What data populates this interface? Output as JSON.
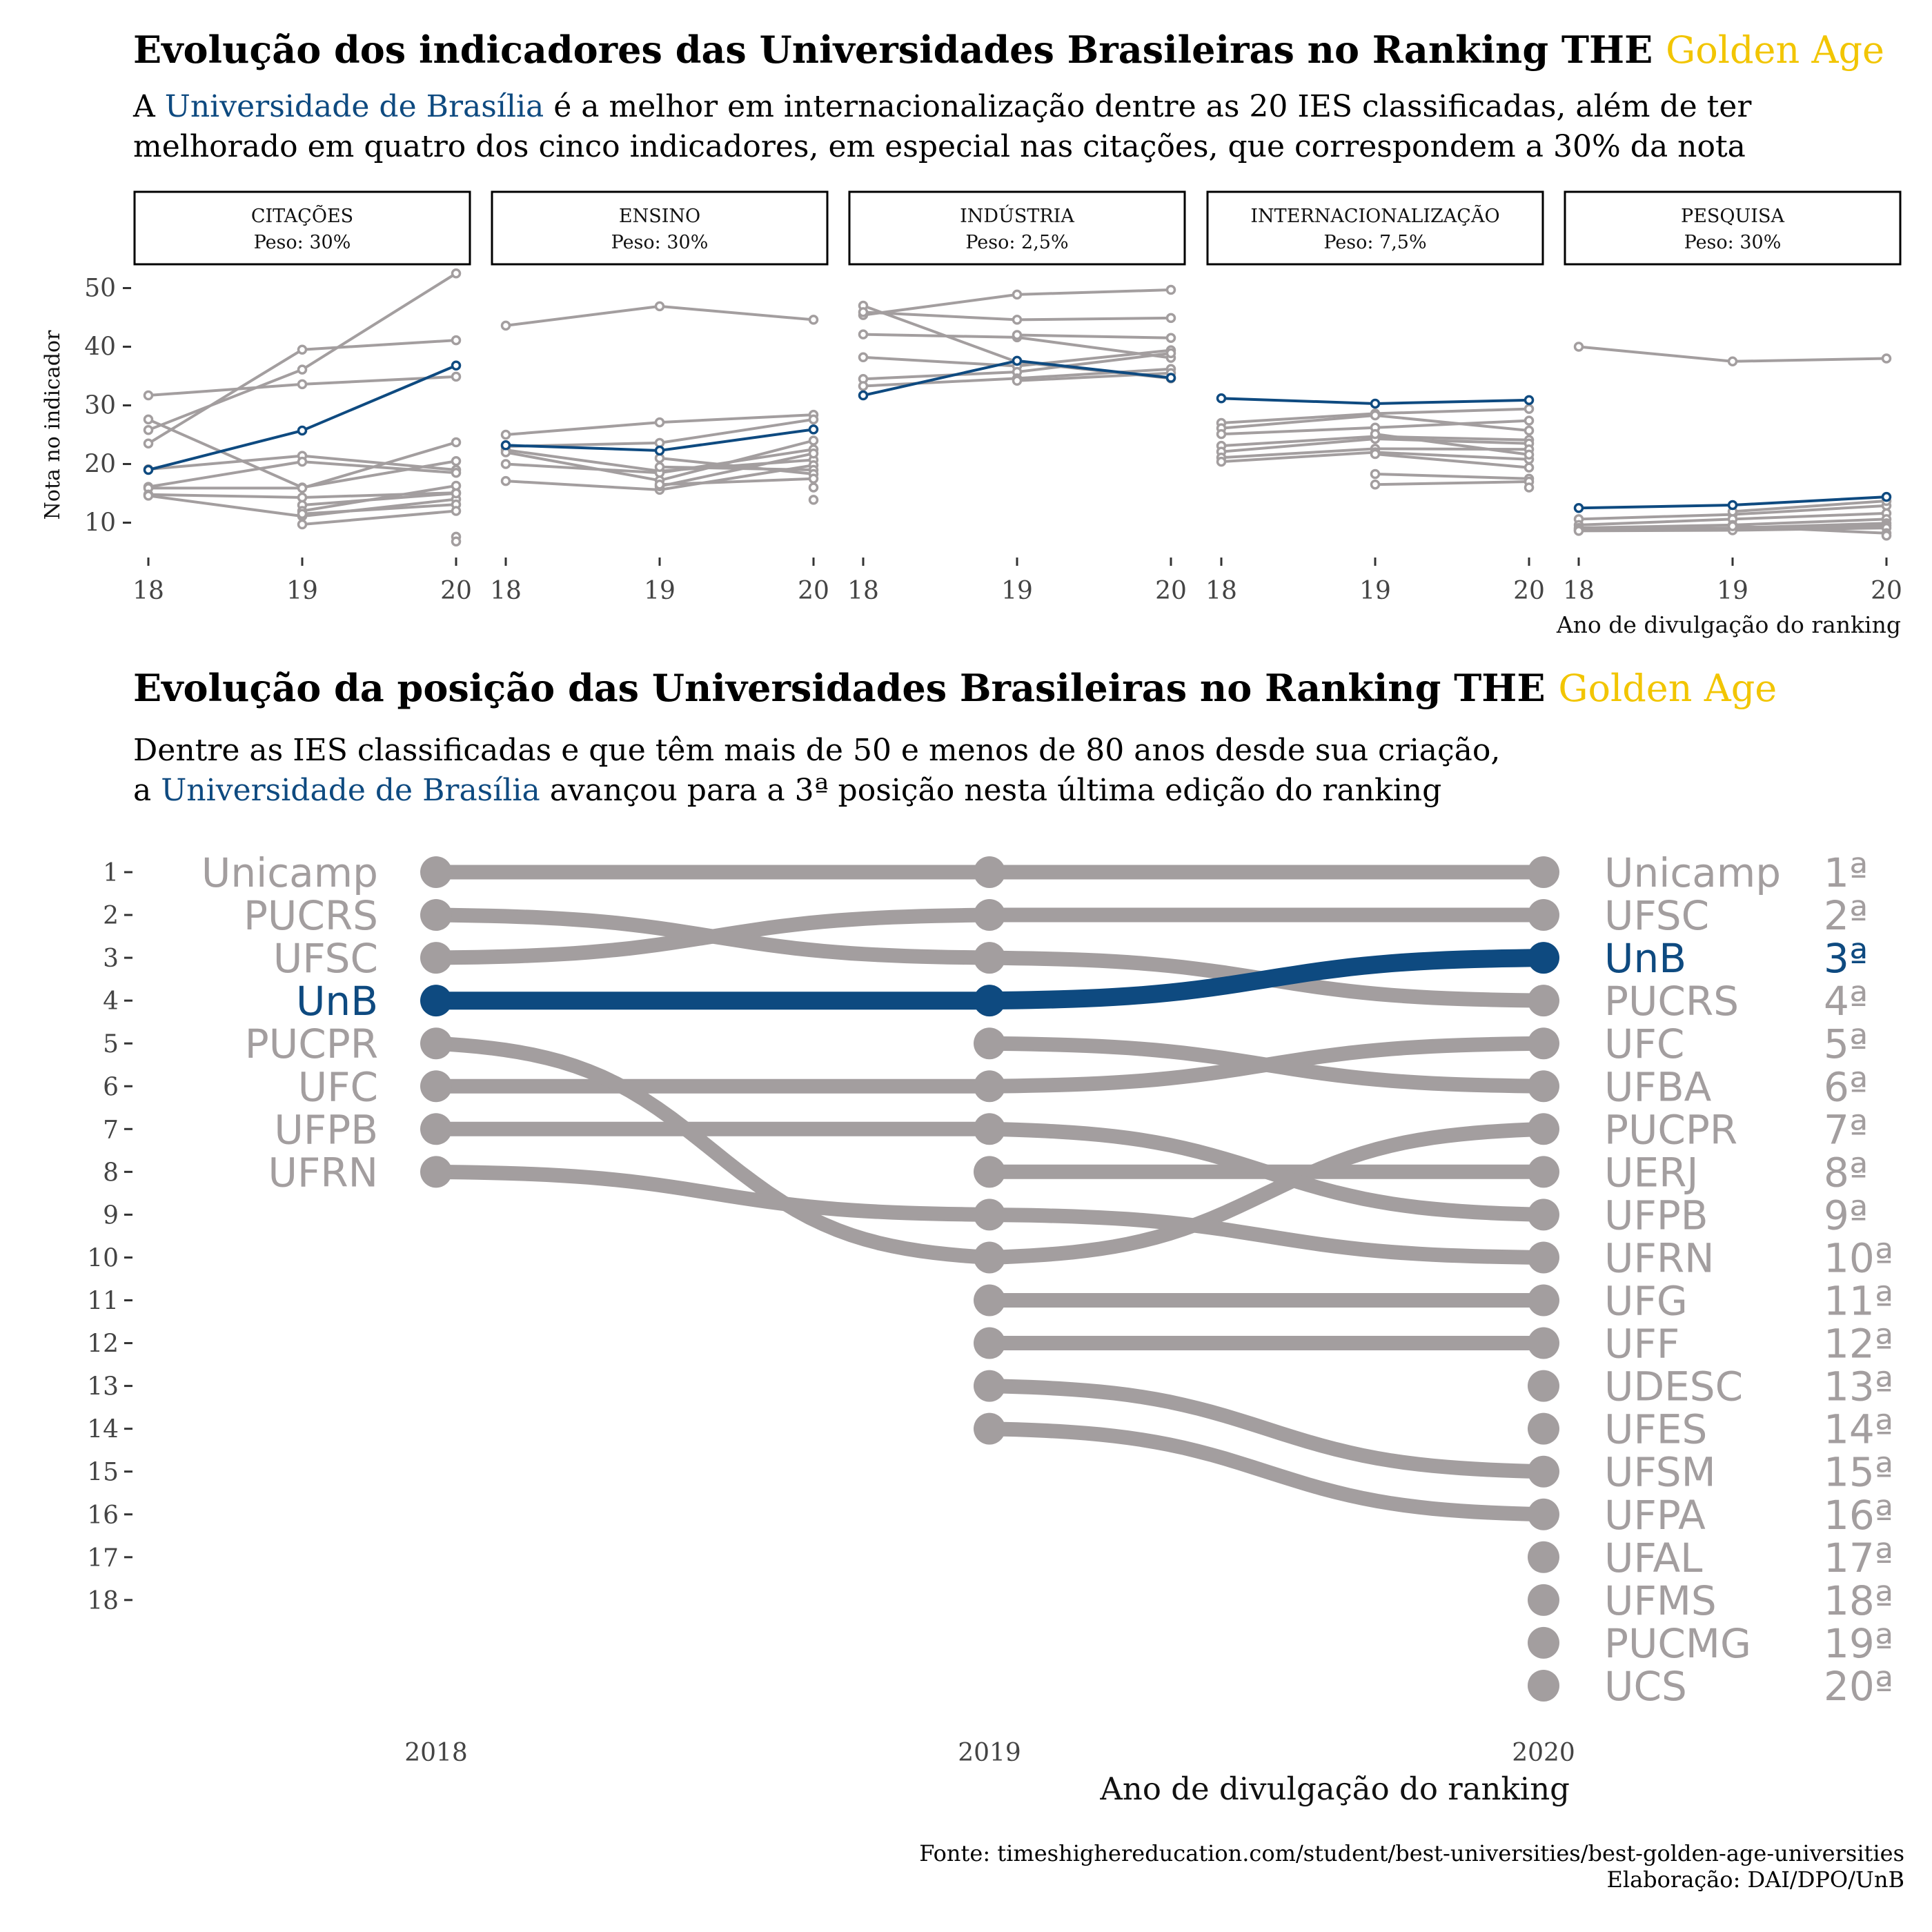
{
  "header1": {
    "title": "Evolução dos indicadores das Universidades Brasileiras no Ranking THE",
    "title_highlight": "Golden Age",
    "subtitle_a": "A ",
    "subtitle_highlight": "Universidade de Brasília",
    "subtitle_b": " é a melhor em internacionalização dentre as 20 IES classificadas, além de ter",
    "subtitle_line2": "melhorado em quatro dos cinco indicadores, em especial nas citações, que correspondem a 30% da nota"
  },
  "header2": {
    "title": "Evolução da posição das Universidades Brasileiras no Ranking THE",
    "title_highlight": "Golden Age",
    "subtitle_line1": "Dentre as IES classificadas e que têm mais de 50 e menos de 80 anos desde sua criação,",
    "subtitle_a": "a ",
    "subtitle_highlight": "Universidade de Brasília",
    "subtitle_b": " avançou para a 3ª posição nesta última edição do ranking"
  },
  "footer": {
    "source": "Fonte: timeshighereducation.com/student/best-universities/best-golden-age-universities",
    "credit": "Elaboração: DAI/DPO/UnB"
  },
  "colors": {
    "gray": "#a39e9f",
    "highlight": "#0e4a80",
    "gold": "#f2c500"
  },
  "chart_data": [
    {
      "type": "line",
      "ylabel": "Nota no indicador",
      "xlabel": "Ano de divulgação do ranking",
      "x": [
        "18",
        "19",
        "20"
      ],
      "yticks": [
        10,
        20,
        30,
        40,
        50
      ],
      "ylim": [
        5,
        53
      ],
      "highlight_series": "UnB",
      "facets": [
        {
          "strip_line1": "CITAÇÕES",
          "strip_line2": "Peso: 30%",
          "series": [
            {
              "values": [
                19.0,
                25.7,
                36.8
              ],
              "highlight": true
            },
            {
              "values": [
                31.7,
                33.6,
                34.9
              ]
            },
            {
              "values": [
                23.5,
                39.5,
                41.1
              ]
            },
            {
              "values": [
                25.8,
                36.1,
                52.5
              ]
            },
            {
              "values": [
                27.6,
                16.0,
                20.5
              ]
            },
            {
              "values": [
                19.1,
                21.4,
                19.0
              ]
            },
            {
              "values": [
                16.1,
                20.4,
                18.5
              ]
            },
            {
              "values": [
                15.9,
                15.9,
                23.7
              ]
            },
            {
              "values": [
                14.8,
                14.3,
                15.1
              ]
            },
            {
              "values": [
                14.6,
                11.1,
                14.0
              ]
            },
            {
              "values": [
                null,
                13.0,
                15.0
              ]
            },
            {
              "values": [
                null,
                12.0,
                16.3
              ]
            },
            {
              "values": [
                null,
                11.5,
                13.1
              ]
            },
            {
              "values": [
                null,
                9.7,
                12.0
              ]
            },
            {
              "values": [
                null,
                null,
                7.6
              ]
            },
            {
              "values": [
                null,
                null,
                6.8
              ]
            }
          ]
        },
        {
          "strip_line1": "ENSINO",
          "strip_line2": "Peso: 30%",
          "series": [
            {
              "values": [
                23.2,
                22.3,
                25.9
              ],
              "highlight": true
            },
            {
              "values": [
                43.6,
                46.9,
                44.6
              ]
            },
            {
              "values": [
                25.0,
                27.1,
                28.4
              ]
            },
            {
              "values": [
                23.0,
                23.6,
                27.6
              ]
            },
            {
              "values": [
                22.4,
                18.8,
                20.7
              ]
            },
            {
              "values": [
                22.0,
                17.2,
                24.0
              ]
            },
            {
              "values": [
                20.0,
                18.5,
                22.5
              ]
            },
            {
              "values": [
                17.1,
                15.6,
                19.8
              ]
            },
            {
              "values": [
                null,
                16.2,
                21.8
              ]
            },
            {
              "values": [
                null,
                19.5,
                19.0
              ]
            },
            {
              "values": [
                null,
                21.0,
                18.3
              ]
            },
            {
              "values": [
                null,
                16.5,
                17.5
              ]
            },
            {
              "values": [
                null,
                null,
                16.0
              ]
            },
            {
              "values": [
                null,
                null,
                13.9
              ]
            }
          ]
        },
        {
          "strip_line1": "INDÚSTRIA",
          "strip_line2": "Peso: 2,5%",
          "series": [
            {
              "values": [
                31.7,
                37.6,
                34.7
              ],
              "highlight": true
            },
            {
              "values": [
                47.0,
                37.4,
                34.6
              ]
            },
            {
              "values": [
                45.4,
                48.9,
                49.7
              ]
            },
            {
              "values": [
                45.9,
                44.6,
                44.9
              ]
            },
            {
              "values": [
                42.1,
                41.6,
                38.1
              ]
            },
            {
              "values": [
                38.2,
                36.7,
                39.4
              ]
            },
            {
              "values": [
                34.5,
                35.7,
                38.9
              ]
            },
            {
              "values": [
                33.3,
                34.6,
                36.2
              ]
            },
            {
              "values": [
                null,
                42.0,
                41.5
              ]
            },
            {
              "values": [
                null,
                34.2,
                35.5
              ]
            }
          ]
        },
        {
          "strip_line1": "INTERNACIONALIZAÇÃO",
          "strip_line2": "Peso: 7,5%",
          "series": [
            {
              "values": [
                31.2,
                30.3,
                30.9
              ],
              "highlight": true
            },
            {
              "values": [
                27.0,
                28.6,
                29.4
              ]
            },
            {
              "values": [
                26.1,
                28.3,
                25.7
              ]
            },
            {
              "values": [
                25.1,
                26.2,
                27.4
              ]
            },
            {
              "values": [
                23.1,
                24.7,
                24.1
              ]
            },
            {
              "values": [
                22.1,
                24.3,
                23.5
              ]
            },
            {
              "values": [
                21.1,
                22.6,
                22.5
              ]
            },
            {
              "values": [
                20.4,
                22.0,
                20.8
              ]
            },
            {
              "values": [
                null,
                25.1,
                21.6
              ]
            },
            {
              "values": [
                null,
                21.7,
                19.4
              ]
            },
            {
              "values": [
                null,
                18.3,
                17.5
              ]
            },
            {
              "values": [
                null,
                16.5,
                17.0
              ]
            },
            {
              "values": [
                null,
                null,
                16.0
              ]
            }
          ]
        },
        {
          "strip_line1": "PESQUISA",
          "strip_line2": "Peso: 30%",
          "series": [
            {
              "values": [
                12.5,
                13.0,
                14.4
              ],
              "highlight": true
            },
            {
              "values": [
                40.0,
                37.5,
                38.0
              ]
            },
            {
              "values": [
                10.6,
                11.4,
                12.9
              ]
            },
            {
              "values": [
                9.6,
                10.6,
                11.6
              ]
            },
            {
              "values": [
                9.1,
                9.6,
                10.6
              ]
            },
            {
              "values": [
                8.9,
                9.1,
                9.9
              ]
            },
            {
              "values": [
                8.7,
                8.9,
                9.5
              ]
            },
            {
              "values": [
                8.6,
                8.7,
                9.1
              ]
            },
            {
              "values": [
                null,
                11.9,
                13.7
              ]
            },
            {
              "values": [
                null,
                9.4,
                8.2
              ]
            },
            {
              "values": [
                null,
                null,
                7.8
              ]
            }
          ]
        }
      ]
    },
    {
      "type": "bump",
      "xlabel": "Ano de divulgação do ranking",
      "x": [
        "2018",
        "2019",
        "2020"
      ],
      "rank_ticks": [
        "1",
        "2",
        "3",
        "4",
        "5",
        "6",
        "7",
        "8",
        "9",
        "10",
        "11",
        "12",
        "13",
        "14",
        "15",
        "16",
        "17",
        "18"
      ],
      "highlight": "UnB",
      "series": [
        {
          "name": "Unicamp",
          "ranks": [
            1,
            1,
            1
          ]
        },
        {
          "name": "UFSC",
          "ranks": [
            3,
            2,
            2
          ]
        },
        {
          "name": "UnB",
          "ranks": [
            4,
            4,
            3
          ],
          "highlight": true
        },
        {
          "name": "PUCRS",
          "ranks": [
            2,
            3,
            4
          ]
        },
        {
          "name": "UFC",
          "ranks": [
            6,
            6,
            5
          ]
        },
        {
          "name": "UFBA",
          "ranks": [
            null,
            5,
            6
          ]
        },
        {
          "name": "PUCPR",
          "ranks": [
            5,
            10,
            7
          ]
        },
        {
          "name": "UERJ",
          "ranks": [
            null,
            8,
            8
          ]
        },
        {
          "name": "UFPB",
          "ranks": [
            7,
            7,
            9
          ]
        },
        {
          "name": "UFRN",
          "ranks": [
            8,
            9,
            10
          ]
        },
        {
          "name": "UFG",
          "ranks": [
            null,
            11,
            11
          ]
        },
        {
          "name": "UFF",
          "ranks": [
            null,
            12,
            12
          ]
        },
        {
          "name": "UDESC",
          "ranks": [
            null,
            null,
            13
          ]
        },
        {
          "name": "UFES",
          "ranks": [
            null,
            null,
            14
          ]
        },
        {
          "name": "UFSM",
          "ranks": [
            null,
            13,
            15
          ]
        },
        {
          "name": "UFPA",
          "ranks": [
            null,
            14,
            16
          ]
        },
        {
          "name": "UFAL",
          "ranks": [
            null,
            null,
            17
          ]
        },
        {
          "name": "UFMS",
          "ranks": [
            null,
            null,
            18
          ]
        },
        {
          "name": "PUCMG",
          "ranks": [
            null,
            null,
            19
          ]
        },
        {
          "name": "UCS",
          "ranks": [
            null,
            null,
            20
          ]
        }
      ],
      "left_labels": [
        "Unicamp",
        "PUCRS",
        "UFSC",
        "UnB",
        "PUCPR",
        "UFC",
        "UFPB",
        "UFRN"
      ],
      "right_labels": [
        "Unicamp",
        "UFSC",
        "UnB",
        "PUCRS",
        "UFC",
        "UFBA",
        "PUCPR",
        "UERJ",
        "UFPB",
        "UFRN",
        "UFG",
        "UFF",
        "UDESC",
        "UFES",
        "UFSM",
        "UFPA",
        "UFAL",
        "UFMS",
        "PUCMG",
        "UCS"
      ],
      "position_labels": [
        "1ª",
        "2ª",
        "3ª",
        "4ª",
        "5ª",
        "6ª",
        "7ª",
        "8ª",
        "9ª",
        "10ª",
        "11ª",
        "12ª",
        "13ª",
        "14ª",
        "15ª",
        "16ª",
        "17ª",
        "18ª",
        "19ª",
        "20ª"
      ]
    }
  ]
}
